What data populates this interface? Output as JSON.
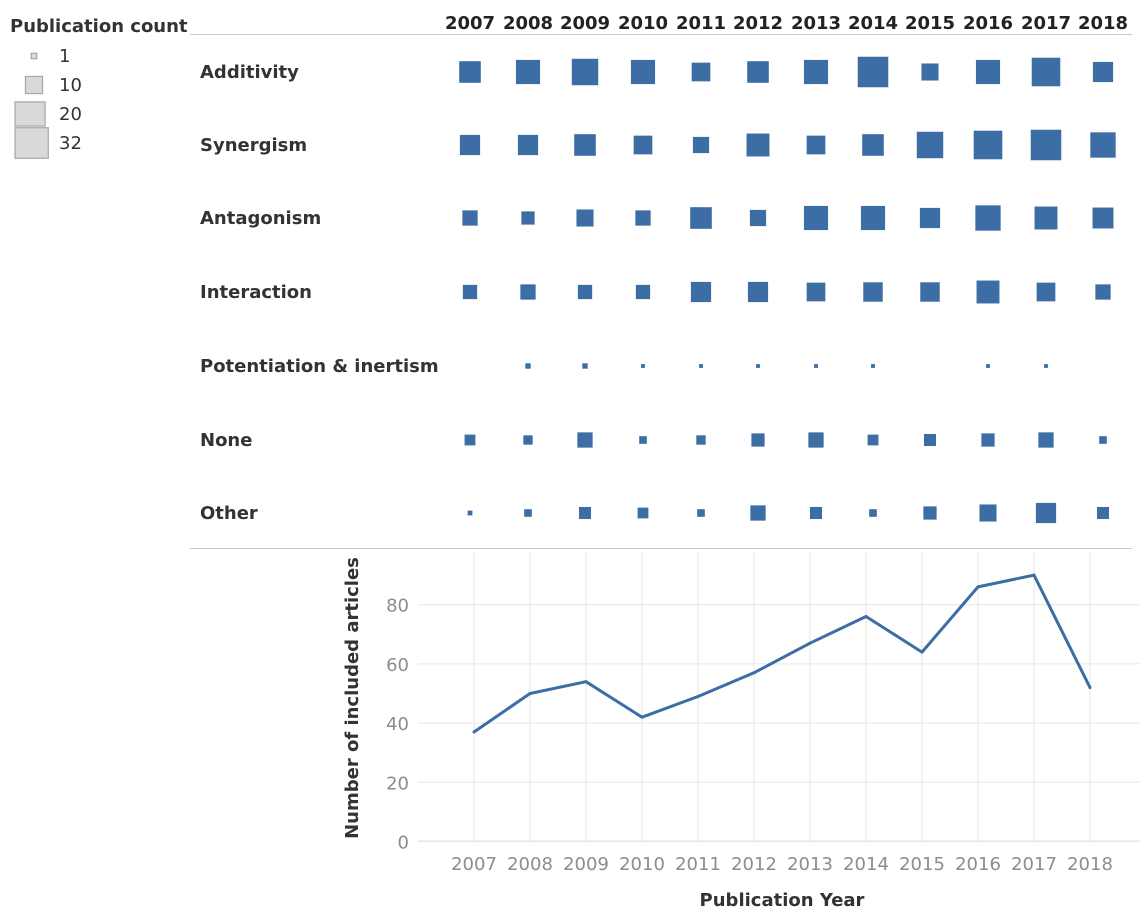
{
  "colors": {
    "mark": "#3c6ea5",
    "legend_fill": "#d9d9d9",
    "legend_stroke": "#a6a6a6",
    "grid": "#e6e6e6",
    "divider": "#c8c8c8",
    "tick_text": "#8c8c8c",
    "label_text": "#333333"
  },
  "legend": {
    "title": "Publication count",
    "items": [
      {
        "label": "1",
        "value": 1
      },
      {
        "label": "10",
        "value": 10
      },
      {
        "label": "20",
        "value": 20
      },
      {
        "label": "32",
        "value": 32
      }
    ]
  },
  "chart_data": [
    {
      "type": "heatmap",
      "mark": "square",
      "size_encodes": "Publication count",
      "years": [
        "2007",
        "2008",
        "2009",
        "2010",
        "2011",
        "2012",
        "2013",
        "2014",
        "2015",
        "2016",
        "2017",
        "2018"
      ],
      "categories": [
        "Additivity",
        "Synergism",
        "Antagonism",
        "Interaction",
        "Potentiation & inertism",
        "None",
        "Other"
      ],
      "values": [
        [
          16,
          20,
          24,
          20,
          12,
          16,
          20,
          32,
          10,
          20,
          28,
          14
        ],
        [
          14,
          14,
          16,
          12,
          9,
          18,
          12,
          16,
          24,
          28,
          32,
          22
        ],
        [
          8,
          6,
          10,
          8,
          16,
          9,
          20,
          20,
          14,
          22,
          18,
          15
        ],
        [
          7,
          8,
          7,
          7,
          14,
          14,
          12,
          13,
          13,
          18,
          12,
          8
        ],
        [
          null,
          1,
          1,
          0.5,
          0.5,
          0.5,
          0.5,
          0.5,
          null,
          0.5,
          0.5,
          null
        ],
        [
          4,
          3,
          8,
          2,
          3,
          6,
          8,
          4,
          5,
          6,
          8,
          2
        ],
        [
          0.8,
          2,
          5,
          4,
          2,
          8,
          5,
          2,
          6,
          10,
          14,
          5
        ]
      ]
    },
    {
      "type": "line",
      "x": [
        "2007",
        "2008",
        "2009",
        "2010",
        "2011",
        "2012",
        "2013",
        "2014",
        "2015",
        "2016",
        "2017",
        "2018"
      ],
      "series": [
        {
          "values": [
            37,
            50,
            54,
            42,
            49,
            57,
            67,
            76,
            64,
            86,
            90,
            52
          ]
        }
      ],
      "xlabel": "Publication Year",
      "ylabel": "Number of included articles",
      "yticks": [
        0,
        20,
        40,
        60,
        80
      ],
      "ylim": [
        0,
        95
      ],
      "grid": true
    }
  ]
}
